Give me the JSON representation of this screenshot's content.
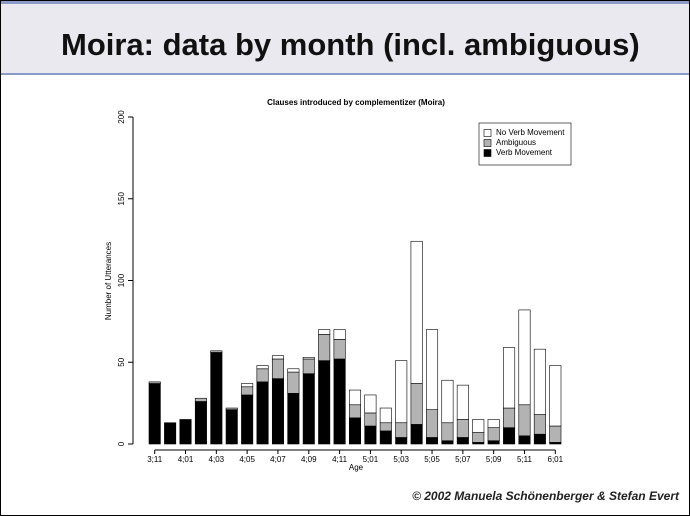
{
  "slide": {
    "title": "Moira: data by month (incl. ambiguous)",
    "footer": "© 2002  Manuela Schönenberger  & Stefan Evert"
  },
  "chart_data": {
    "type": "stacked-bar",
    "title": "Clauses introduced by complementizer (Moira)",
    "x_label": "Age",
    "y_label": "Number of Utterances",
    "categories": [
      "3;11",
      null,
      "4;01",
      null,
      "4;03",
      null,
      "4;05",
      null,
      "4;07",
      null,
      "4;09",
      null,
      "4;11",
      null,
      "5;01",
      null,
      "5;03",
      null,
      "5;05",
      null,
      "5;07",
      null,
      "5;09",
      null,
      "5;11",
      null,
      "6;01"
    ],
    "series": [
      {
        "name": "No Verb Movement",
        "color": "#ffffff",
        "values": [
          0,
          0,
          0,
          0,
          0,
          0,
          2,
          2,
          2,
          2,
          1,
          3,
          6,
          9,
          11,
          9,
          38,
          87,
          49,
          26,
          21,
          8,
          5,
          37,
          58,
          40,
          37
        ]
      },
      {
        "name": "Ambiguous",
        "color": "#b3b3b3",
        "values": [
          1,
          0,
          0,
          2,
          1,
          1,
          5,
          8,
          12,
          13,
          9,
          16,
          12,
          8,
          8,
          5,
          9,
          25,
          17,
          11,
          11,
          6,
          8,
          12,
          19,
          12,
          10
        ]
      },
      {
        "name": "Verb Movement",
        "color": "#000000",
        "values": [
          37,
          13,
          15,
          26,
          56,
          21,
          30,
          38,
          40,
          31,
          43,
          51,
          52,
          16,
          11,
          8,
          4,
          12,
          4,
          2,
          4,
          1,
          2,
          10,
          5,
          6,
          1
        ]
      }
    ],
    "ylim": [
      0,
      200
    ],
    "yticks": [
      0,
      50,
      100,
      150,
      200
    ],
    "legend": "top-right"
  }
}
